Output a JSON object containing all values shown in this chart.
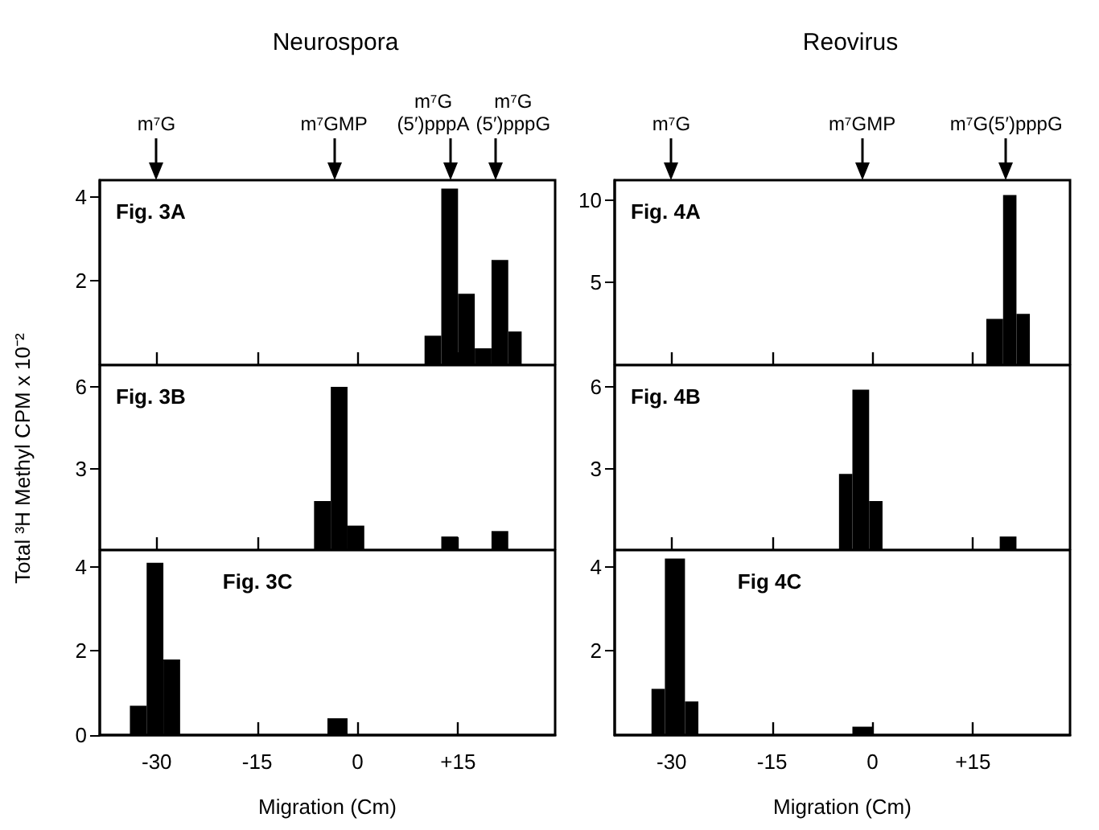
{
  "chart_data": [
    {
      "type": "histogram",
      "title": "Neurospora",
      "bins": [
        10,
        12.5,
        15,
        17.5,
        20,
        22.5,
        24.5
      ],
      "values": [
        0.7,
        4.2,
        1.7,
        0.4,
        2.5,
        0.8
      ],
      "color": "#000000",
      "xlim": [
        -38.5,
        29.5
      ],
      "xticks": [
        -30,
        -15,
        0,
        15
      ],
      "ylim": [
        0,
        4.4
      ],
      "yticks": [
        2,
        4
      ],
      "tick_labels": "y",
      "annotations": [
        "Fig. 3A",
        "m⁷G",
        "m⁷GMP",
        "m⁷G\n(5′)pppA",
        "m⁷G\n(5′)pppG"
      ]
    },
    {
      "type": "histogram",
      "title": "Reovirus",
      "bins": [
        17,
        19.5,
        21.5,
        23.5
      ],
      "values": [
        2.8,
        10.3,
        3.1
      ],
      "color": "#000000",
      "xlim": [
        -38.5,
        29.5
      ],
      "xticks": [
        -30,
        -15,
        0,
        15
      ],
      "ylim": [
        0,
        11.2
      ],
      "yticks": [
        5,
        10
      ],
      "tick_labels": "y",
      "annotations": [
        "Fig. 4A",
        "m⁷G",
        "m⁷GMP",
        "m⁷G(5′)pppG"
      ]
    },
    {
      "type": "histogram",
      "ylabel": "Total ³H Methyl CPM x 10⁻²",
      "bins": [
        -6.5,
        -4,
        -1.5,
        1,
        12.5,
        15,
        20,
        22.5
      ],
      "values": [
        1.8,
        6.0,
        0.9,
        0,
        0.5,
        0,
        0.7
      ],
      "color": "#000000",
      "xlim": [
        -38.5,
        29.5
      ],
      "xticks": [
        -30,
        -15,
        0,
        15
      ],
      "ylim": [
        0,
        6.8
      ],
      "yticks": [
        3,
        6
      ],
      "tick_labels": "y",
      "annotations": [
        "Fig. 3B"
      ]
    },
    {
      "type": "histogram",
      "bins": [
        -5,
        -3,
        -0.5,
        1.5,
        19,
        21.5
      ],
      "values": [
        2.8,
        5.9,
        1.8,
        0,
        0.5
      ],
      "color": "#000000",
      "xlim": [
        -38.5,
        29.5
      ],
      "xticks": [
        -30,
        -15,
        0,
        15
      ],
      "ylim": [
        0,
        6.8
      ],
      "yticks": [
        3,
        6
      ],
      "tick_labels": "y",
      "annotations": [
        "Fig. 4B"
      ]
    },
    {
      "type": "histogram",
      "xlabel": "Migration (Cm)",
      "bins": [
        -34,
        -31.5,
        -29,
        -26.5,
        -4.5,
        -1.5
      ],
      "values": [
        0.7,
        4.1,
        1.8,
        0,
        0.4
      ],
      "color": "#000000",
      "xlim": [
        -38.5,
        29.5
      ],
      "xticks": [
        -30,
        -15,
        0,
        {
          "value": 15,
          "label": "+15"
        }
      ],
      "ylim": [
        0,
        4.4
      ],
      "yticks": [
        0,
        2,
        4
      ],
      "annotations": [
        "Fig. 3C"
      ]
    },
    {
      "type": "histogram",
      "xlabel": "Migration (Cm)",
      "bins": [
        -33,
        -31,
        -28,
        -26,
        -3,
        0
      ],
      "values": [
        1.1,
        4.2,
        0.8,
        0,
        0.2
      ],
      "color": "#000000",
      "xlim": [
        -38.5,
        29.5
      ],
      "xticks": [
        -30,
        -15,
        0,
        {
          "value": 15,
          "label": "+15"
        }
      ],
      "ylim": [
        0,
        4.4
      ],
      "yticks": [
        2,
        4
      ],
      "annotations": [
        "Fig 4C"
      ]
    }
  ]
}
